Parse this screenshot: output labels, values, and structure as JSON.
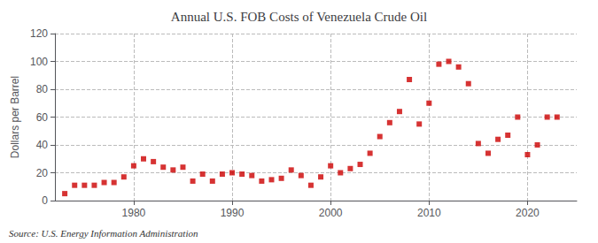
{
  "chart_data": {
    "type": "scatter",
    "title": "Annual U.S. FOB Costs of Venezuela Crude Oil",
    "ylabel": "Dollars per Barrel",
    "annotation": "Source: U.S. Energy Information Administration",
    "x": [
      1973,
      1974,
      1975,
      1976,
      1977,
      1978,
      1979,
      1980,
      1981,
      1982,
      1983,
      1984,
      1985,
      1986,
      1987,
      1988,
      1989,
      1990,
      1991,
      1992,
      1993,
      1994,
      1995,
      1996,
      1997,
      1998,
      1999,
      2000,
      2001,
      2002,
      2003,
      2004,
      2005,
      2006,
      2007,
      2008,
      2009,
      2010,
      2011,
      2012,
      2013,
      2014,
      2015,
      2016,
      2017,
      2018,
      2019,
      2020,
      2021,
      2022,
      2023
    ],
    "values": [
      5,
      11,
      11,
      11,
      13,
      13,
      17,
      25,
      30,
      28,
      24,
      22,
      24,
      14,
      19,
      14,
      19,
      20,
      19,
      18,
      14,
      15,
      16,
      22,
      18,
      11,
      17,
      25,
      20,
      23,
      26,
      34,
      46,
      56,
      64,
      87,
      55,
      70,
      98,
      100,
      96,
      84,
      41,
      34,
      44,
      47,
      60,
      33,
      40,
      60,
      60
    ],
    "color": "#cc0000",
    "marker": "square",
    "xlim": [
      1972,
      2025
    ],
    "xticks": [
      1980,
      1990,
      2000,
      2010,
      2020
    ],
    "ylim": [
      0,
      120
    ],
    "yticks": [
      0,
      20,
      40,
      60,
      80,
      100,
      120
    ],
    "grid": true
  }
}
